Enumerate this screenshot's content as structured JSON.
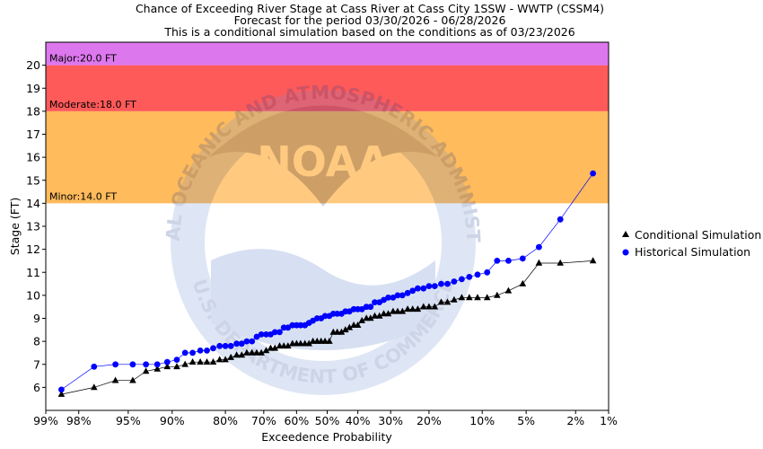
{
  "chart_data": {
    "type": "line",
    "title_lines": [
      "Chance of Exceeding River Stage at Cass River at Cass City 1SSW - WWTP (CSSM4)",
      "Forecast for the period 03/30/2026 - 06/28/2026",
      "This is a conditional simulation based on the conditions as of 03/23/2026"
    ],
    "xlabel": "Exceedence Probability",
    "ylabel": "Stage (FT)",
    "x_scale": "normal-probability",
    "x_ticks": [
      99,
      98,
      95,
      90,
      80,
      70,
      60,
      50,
      40,
      30,
      20,
      10,
      5,
      2,
      1
    ],
    "x_tick_labels": [
      "99%",
      "98%",
      "95%",
      "90%",
      "80%",
      "70%",
      "60%",
      "50%",
      "40%",
      "30%",
      "20%",
      "10%",
      "5%",
      "2%",
      "1%"
    ],
    "ylim": [
      5,
      21
    ],
    "y_ticks": [
      6,
      7,
      8,
      9,
      10,
      11,
      12,
      13,
      14,
      15,
      16,
      17,
      18,
      19,
      20
    ],
    "grid": false,
    "legend": "right",
    "watermark": {
      "top_text": "NATIONAL OCEANIC AND ATMOSPHERIC ADMINISTRATION",
      "bottom_text": "U.S. DEPARTMENT OF COMMERCE",
      "center_text": "NOAA"
    },
    "bands": [
      {
        "name": "Minor",
        "label": "Minor:14.0 FT",
        "from": 14.0,
        "to": 18.0,
        "color": "#ffbb5c"
      },
      {
        "name": "Moderate",
        "label": "Moderate:18.0 FT",
        "from": 18.0,
        "to": 20.0,
        "color": "#ff5a5a"
      },
      {
        "name": "Major",
        "label": "Major:20.0 FT",
        "from": 20.0,
        "to": 21.0,
        "color": "#dd77ee"
      }
    ],
    "series": [
      {
        "name": "Conditional Simulation",
        "marker": "triangle",
        "color": "#000000",
        "points": [
          [
            98.6,
            5.7
          ],
          [
            97.3,
            6.0
          ],
          [
            96.0,
            6.3
          ],
          [
            94.6,
            6.3
          ],
          [
            93.3,
            6.7
          ],
          [
            92.0,
            6.8
          ],
          [
            90.7,
            6.9
          ],
          [
            89.3,
            6.9
          ],
          [
            88.0,
            7.0
          ],
          [
            86.7,
            7.1
          ],
          [
            85.3,
            7.1
          ],
          [
            84.0,
            7.1
          ],
          [
            82.7,
            7.1
          ],
          [
            81.3,
            7.2
          ],
          [
            80.0,
            7.2
          ],
          [
            78.7,
            7.3
          ],
          [
            77.3,
            7.4
          ],
          [
            76.0,
            7.4
          ],
          [
            74.7,
            7.5
          ],
          [
            73.3,
            7.5
          ],
          [
            72.0,
            7.5
          ],
          [
            70.7,
            7.5
          ],
          [
            69.3,
            7.6
          ],
          [
            68.0,
            7.7
          ],
          [
            66.7,
            7.7
          ],
          [
            65.3,
            7.8
          ],
          [
            64.0,
            7.8
          ],
          [
            62.7,
            7.8
          ],
          [
            61.3,
            7.9
          ],
          [
            60.0,
            7.9
          ],
          [
            58.7,
            7.9
          ],
          [
            57.3,
            7.9
          ],
          [
            56.0,
            7.9
          ],
          [
            54.7,
            8.0
          ],
          [
            53.3,
            8.0
          ],
          [
            52.0,
            8.0
          ],
          [
            50.7,
            8.0
          ],
          [
            49.3,
            8.0
          ],
          [
            48.0,
            8.4
          ],
          [
            46.7,
            8.4
          ],
          [
            45.3,
            8.4
          ],
          [
            44.0,
            8.5
          ],
          [
            42.7,
            8.6
          ],
          [
            41.3,
            8.7
          ],
          [
            40.0,
            8.7
          ],
          [
            38.7,
            8.9
          ],
          [
            37.3,
            9.0
          ],
          [
            36.0,
            9.0
          ],
          [
            34.7,
            9.1
          ],
          [
            33.3,
            9.1
          ],
          [
            32.0,
            9.2
          ],
          [
            30.7,
            9.2
          ],
          [
            29.3,
            9.3
          ],
          [
            28.0,
            9.3
          ],
          [
            26.7,
            9.3
          ],
          [
            25.3,
            9.4
          ],
          [
            24.0,
            9.4
          ],
          [
            22.7,
            9.4
          ],
          [
            21.3,
            9.5
          ],
          [
            20.0,
            9.5
          ],
          [
            18.7,
            9.5
          ],
          [
            17.3,
            9.7
          ],
          [
            16.0,
            9.7
          ],
          [
            14.7,
            9.8
          ],
          [
            13.3,
            9.9
          ],
          [
            12.0,
            9.9
          ],
          [
            10.7,
            9.9
          ],
          [
            9.3,
            9.9
          ],
          [
            8.0,
            10.0
          ],
          [
            6.7,
            10.2
          ],
          [
            5.3,
            10.5
          ],
          [
            4.0,
            11.4
          ],
          [
            2.7,
            11.4
          ],
          [
            1.4,
            11.5
          ]
        ]
      },
      {
        "name": "Historical Simulation",
        "marker": "circle",
        "color": "#0000ff",
        "points": [
          [
            98.6,
            5.9
          ],
          [
            97.3,
            6.9
          ],
          [
            96.0,
            7.0
          ],
          [
            94.6,
            7.0
          ],
          [
            93.3,
            7.0
          ],
          [
            92.0,
            7.0
          ],
          [
            90.7,
            7.1
          ],
          [
            89.3,
            7.2
          ],
          [
            88.0,
            7.5
          ],
          [
            86.7,
            7.5
          ],
          [
            85.3,
            7.6
          ],
          [
            84.0,
            7.6
          ],
          [
            82.7,
            7.7
          ],
          [
            81.3,
            7.8
          ],
          [
            80.0,
            7.8
          ],
          [
            78.7,
            7.8
          ],
          [
            77.3,
            7.9
          ],
          [
            76.0,
            7.9
          ],
          [
            74.7,
            8.0
          ],
          [
            73.3,
            8.0
          ],
          [
            72.0,
            8.2
          ],
          [
            70.7,
            8.3
          ],
          [
            69.3,
            8.3
          ],
          [
            68.0,
            8.3
          ],
          [
            66.7,
            8.4
          ],
          [
            65.3,
            8.4
          ],
          [
            64.0,
            8.6
          ],
          [
            62.7,
            8.6
          ],
          [
            61.3,
            8.7
          ],
          [
            60.0,
            8.7
          ],
          [
            58.7,
            8.7
          ],
          [
            57.3,
            8.7
          ],
          [
            56.0,
            8.8
          ],
          [
            54.7,
            8.9
          ],
          [
            53.3,
            9.0
          ],
          [
            52.0,
            9.0
          ],
          [
            50.7,
            9.1
          ],
          [
            49.3,
            9.1
          ],
          [
            48.0,
            9.2
          ],
          [
            46.7,
            9.2
          ],
          [
            45.3,
            9.2
          ],
          [
            44.0,
            9.3
          ],
          [
            42.7,
            9.3
          ],
          [
            41.3,
            9.4
          ],
          [
            40.0,
            9.4
          ],
          [
            38.7,
            9.4
          ],
          [
            37.3,
            9.5
          ],
          [
            36.0,
            9.5
          ],
          [
            34.7,
            9.7
          ],
          [
            33.3,
            9.7
          ],
          [
            32.0,
            9.8
          ],
          [
            30.7,
            9.9
          ],
          [
            29.3,
            9.9
          ],
          [
            28.0,
            10.0
          ],
          [
            26.7,
            10.0
          ],
          [
            25.3,
            10.1
          ],
          [
            24.0,
            10.2
          ],
          [
            22.7,
            10.3
          ],
          [
            21.3,
            10.3
          ],
          [
            20.0,
            10.4
          ],
          [
            18.7,
            10.4
          ],
          [
            17.3,
            10.5
          ],
          [
            16.0,
            10.5
          ],
          [
            14.7,
            10.6
          ],
          [
            13.3,
            10.7
          ],
          [
            12.0,
            10.8
          ],
          [
            10.7,
            10.9
          ],
          [
            9.3,
            11.0
          ],
          [
            8.0,
            11.5
          ],
          [
            6.7,
            11.5
          ],
          [
            5.3,
            11.6
          ],
          [
            4.0,
            12.1
          ],
          [
            2.7,
            13.3
          ],
          [
            1.4,
            15.3
          ]
        ]
      }
    ]
  }
}
